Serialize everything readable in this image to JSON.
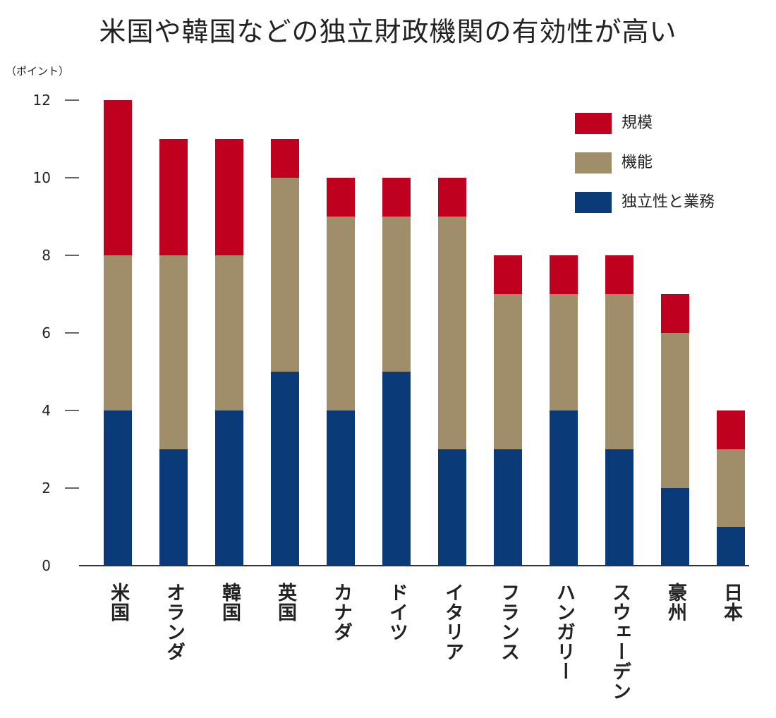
{
  "chart_data": {
    "type": "bar",
    "stacked": true,
    "title": "米国や韓国などの独立財政機関の有効性が高い",
    "y_unit": "（ポイント）",
    "categories": [
      "米国",
      "オランダ",
      "韓国",
      "英国",
      "カナダ",
      "ドイツ",
      "イタリア",
      "フランス",
      "ハンガリー",
      "スウェーデン",
      "豪州",
      "日本"
    ],
    "series": [
      {
        "name": "独立性と業務",
        "color": "#0b3a78",
        "values": [
          4,
          3,
          4,
          5,
          4,
          5,
          3,
          3,
          4,
          3,
          2,
          1
        ]
      },
      {
        "name": "機能",
        "color": "#a08e6a",
        "values": [
          4,
          5,
          4,
          5,
          5,
          4,
          6,
          4,
          3,
          4,
          4,
          2
        ]
      },
      {
        "name": "規模",
        "color": "#c0001f",
        "values": [
          4,
          3,
          3,
          1,
          1,
          1,
          1,
          1,
          1,
          1,
          1,
          1
        ]
      }
    ],
    "legend_order": [
      "規模",
      "機能",
      "独立性と業務"
    ],
    "ylim": [
      0,
      12
    ],
    "yticks": [
      0,
      2,
      4,
      6,
      8,
      10,
      12
    ],
    "grid": false,
    "legend_position": "top-right"
  }
}
